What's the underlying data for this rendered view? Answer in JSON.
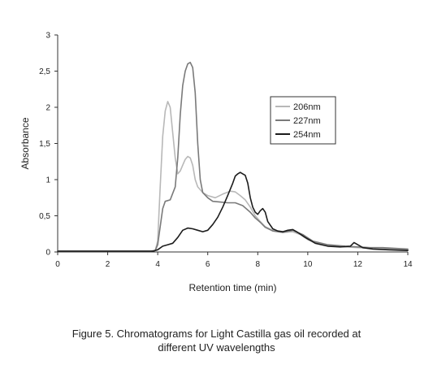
{
  "caption": {
    "line1": "Figure 5. Chromatograms for Light Castilla gas oil recorded at",
    "line2": "different UV wavelengths"
  },
  "chart_data": {
    "type": "line",
    "xlabel": "Retention time (min)",
    "ylabel": "Absorbance",
    "xlim": [
      0,
      14
    ],
    "ylim": [
      0,
      3
    ],
    "x_ticks": [
      0,
      2,
      4,
      6,
      8,
      10,
      12,
      14
    ],
    "x_tick_labels": [
      "0",
      "2",
      "4",
      "6",
      "8",
      "10",
      "12",
      "14"
    ],
    "y_ticks": [
      0,
      0.5,
      1,
      1.5,
      2,
      2.5,
      3
    ],
    "y_tick_labels": [
      "0",
      "0,5",
      "1",
      "1,5",
      "2",
      "2,5",
      "3"
    ],
    "grid": false,
    "legend_position": "top-right",
    "series": [
      {
        "name": "206nm",
        "color": "#b8b8b8",
        "points": [
          [
            0,
            0.01
          ],
          [
            3.7,
            0.01
          ],
          [
            3.9,
            0.02
          ],
          [
            4.0,
            0.15
          ],
          [
            4.1,
            0.9
          ],
          [
            4.2,
            1.6
          ],
          [
            4.3,
            1.95
          ],
          [
            4.4,
            2.08
          ],
          [
            4.5,
            2.0
          ],
          [
            4.6,
            1.65
          ],
          [
            4.7,
            1.3
          ],
          [
            4.8,
            1.08
          ],
          [
            4.9,
            1.12
          ],
          [
            5.0,
            1.2
          ],
          [
            5.1,
            1.28
          ],
          [
            5.2,
            1.32
          ],
          [
            5.3,
            1.3
          ],
          [
            5.4,
            1.2
          ],
          [
            5.5,
            1.0
          ],
          [
            5.6,
            0.9
          ],
          [
            5.8,
            0.82
          ],
          [
            6.0,
            0.78
          ],
          [
            6.3,
            0.75
          ],
          [
            6.6,
            0.8
          ],
          [
            6.9,
            0.84
          ],
          [
            7.1,
            0.83
          ],
          [
            7.3,
            0.78
          ],
          [
            7.5,
            0.72
          ],
          [
            7.7,
            0.62
          ],
          [
            7.9,
            0.5
          ],
          [
            8.1,
            0.42
          ],
          [
            8.3,
            0.35
          ],
          [
            8.6,
            0.3
          ],
          [
            9.0,
            0.27
          ],
          [
            9.4,
            0.28
          ],
          [
            9.7,
            0.24
          ],
          [
            10.0,
            0.17
          ],
          [
            10.5,
            0.11
          ],
          [
            11.0,
            0.08
          ],
          [
            11.5,
            0.07
          ],
          [
            12.0,
            0.06
          ],
          [
            12.5,
            0.05
          ],
          [
            13.0,
            0.05
          ],
          [
            14.0,
            0.03
          ]
        ]
      },
      {
        "name": "227nm",
        "color": "#7a7a7a",
        "points": [
          [
            0,
            0.01
          ],
          [
            3.7,
            0.01
          ],
          [
            3.9,
            0.02
          ],
          [
            4.0,
            0.1
          ],
          [
            4.1,
            0.35
          ],
          [
            4.2,
            0.6
          ],
          [
            4.3,
            0.7
          ],
          [
            4.5,
            0.72
          ],
          [
            4.7,
            0.9
          ],
          [
            4.8,
            1.3
          ],
          [
            4.9,
            1.9
          ],
          [
            5.0,
            2.3
          ],
          [
            5.1,
            2.5
          ],
          [
            5.2,
            2.6
          ],
          [
            5.3,
            2.62
          ],
          [
            5.4,
            2.55
          ],
          [
            5.5,
            2.2
          ],
          [
            5.6,
            1.5
          ],
          [
            5.7,
            1.0
          ],
          [
            5.8,
            0.82
          ],
          [
            6.0,
            0.75
          ],
          [
            6.2,
            0.7
          ],
          [
            6.5,
            0.69
          ],
          [
            6.8,
            0.68
          ],
          [
            7.1,
            0.68
          ],
          [
            7.4,
            0.64
          ],
          [
            7.7,
            0.55
          ],
          [
            7.9,
            0.47
          ],
          [
            8.1,
            0.41
          ],
          [
            8.3,
            0.34
          ],
          [
            8.6,
            0.29
          ],
          [
            9.0,
            0.27
          ],
          [
            9.4,
            0.3
          ],
          [
            9.8,
            0.24
          ],
          [
            10.2,
            0.15
          ],
          [
            10.8,
            0.1
          ],
          [
            11.5,
            0.08
          ],
          [
            12.0,
            0.07
          ],
          [
            12.5,
            0.06
          ],
          [
            13.0,
            0.06
          ],
          [
            14.0,
            0.04
          ]
        ]
      },
      {
        "name": "254nm",
        "color": "#1c1c1c",
        "points": [
          [
            0,
            0.01
          ],
          [
            3.8,
            0.01
          ],
          [
            4.0,
            0.03
          ],
          [
            4.2,
            0.08
          ],
          [
            4.4,
            0.1
          ],
          [
            4.6,
            0.12
          ],
          [
            4.8,
            0.2
          ],
          [
            5.0,
            0.3
          ],
          [
            5.2,
            0.33
          ],
          [
            5.4,
            0.32
          ],
          [
            5.6,
            0.3
          ],
          [
            5.8,
            0.28
          ],
          [
            6.0,
            0.3
          ],
          [
            6.2,
            0.38
          ],
          [
            6.4,
            0.48
          ],
          [
            6.6,
            0.62
          ],
          [
            6.8,
            0.78
          ],
          [
            7.0,
            0.95
          ],
          [
            7.1,
            1.05
          ],
          [
            7.2,
            1.08
          ],
          [
            7.3,
            1.1
          ],
          [
            7.4,
            1.08
          ],
          [
            7.5,
            1.06
          ],
          [
            7.6,
            0.95
          ],
          [
            7.7,
            0.75
          ],
          [
            7.8,
            0.62
          ],
          [
            7.9,
            0.55
          ],
          [
            8.0,
            0.52
          ],
          [
            8.1,
            0.57
          ],
          [
            8.2,
            0.6
          ],
          [
            8.3,
            0.55
          ],
          [
            8.4,
            0.42
          ],
          [
            8.6,
            0.32
          ],
          [
            8.8,
            0.29
          ],
          [
            9.0,
            0.28
          ],
          [
            9.2,
            0.3
          ],
          [
            9.4,
            0.31
          ],
          [
            9.6,
            0.27
          ],
          [
            9.9,
            0.2
          ],
          [
            10.3,
            0.12
          ],
          [
            10.8,
            0.08
          ],
          [
            11.3,
            0.07
          ],
          [
            11.7,
            0.08
          ],
          [
            11.85,
            0.13
          ],
          [
            12.0,
            0.1
          ],
          [
            12.2,
            0.06
          ],
          [
            12.6,
            0.04
          ],
          [
            13.2,
            0.03
          ],
          [
            14.0,
            0.02
          ]
        ]
      }
    ]
  }
}
